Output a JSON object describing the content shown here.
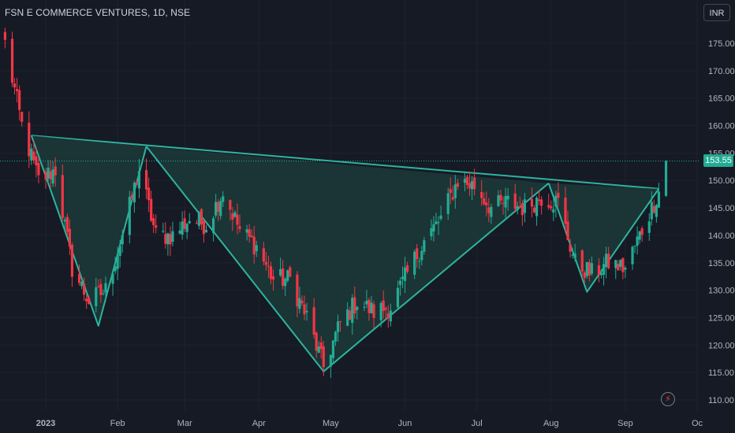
{
  "header": {
    "symbol_title": "FSN E COMMERCE VENTURES, 1D, NSE",
    "currency_button": "INR",
    "last_price": "153.55",
    "alert_icon": "lightning-icon"
  },
  "colors": {
    "background": "#161a25",
    "up": "#22ab94",
    "down": "#f23645",
    "pattern_line": "#2db49f",
    "pattern_fill": "#1c3a38"
  },
  "chart_data": {
    "type": "candlestick",
    "title": "FSN E COMMERCE VENTURES, 1D, NSE",
    "ylim": [
      109,
      179
    ],
    "y_ticks": [
      175,
      170,
      165,
      160,
      155,
      150,
      145,
      140,
      135,
      130,
      125,
      120,
      115,
      110
    ],
    "y_tick_labels": [
      "175.00",
      "170.00",
      "165.00",
      "160.00",
      "155.00",
      "150.00",
      "145.00",
      "140.00",
      "135.00",
      "130.00",
      "125.00",
      "120.00",
      "115.00",
      "110.00"
    ],
    "x_tick_labels": [
      "2023",
      "Feb",
      "Mar",
      "Apr",
      "May",
      "Jun",
      "Jul",
      "Aug",
      "Sep",
      "Oc"
    ],
    "x_tick_dates": [
      "2023-01-02",
      "2023-02-01",
      "2023-03-01",
      "2023-04-01",
      "2023-05-01",
      "2023-06-01",
      "2023-07-01",
      "2023-08-01",
      "2023-09-01",
      "2023-10-01"
    ],
    "last_price": 153.55,
    "patterns": [
      {
        "name": "neckline",
        "points": [
          [
            "2022-12-27",
            158.2
          ],
          [
            "2023-09-15",
            148.5
          ]
        ]
      },
      {
        "name": "left-shoulder",
        "points": [
          [
            "2022-12-27",
            158.2
          ],
          [
            "2023-01-24",
            123.5
          ],
          [
            "2023-02-13",
            156.2
          ]
        ]
      },
      {
        "name": "head",
        "points": [
          [
            "2023-02-13",
            156.2
          ],
          [
            "2023-04-28",
            115.2
          ],
          [
            "2023-07-31",
            149.5
          ]
        ]
      },
      {
        "name": "right-shoulder",
        "points": [
          [
            "2023-07-31",
            149.5
          ],
          [
            "2023-08-16",
            129.7
          ],
          [
            "2023-09-15",
            148.5
          ]
        ]
      }
    ],
    "anchors": [
      [
        "2022-12-16",
        175.0
      ],
      [
        "2022-12-23",
        160.0
      ],
      [
        "2022-12-30",
        150.0
      ],
      [
        "2023-01-06",
        152.0
      ],
      [
        "2023-01-13",
        134.0
      ],
      [
        "2023-01-20",
        128.0
      ],
      [
        "2023-01-27",
        130.0
      ],
      [
        "2023-02-03",
        140.0
      ],
      [
        "2023-02-10",
        152.0
      ],
      [
        "2023-02-17",
        140.0
      ],
      [
        "2023-02-24",
        140.0
      ],
      [
        "2023-03-03",
        143.0
      ],
      [
        "2023-03-10",
        142.0
      ],
      [
        "2023-03-17",
        148.0
      ],
      [
        "2023-03-24",
        141.0
      ],
      [
        "2023-03-31",
        138.0
      ],
      [
        "2023-04-07",
        132.0
      ],
      [
        "2023-04-14",
        132.0
      ],
      [
        "2023-04-21",
        125.0
      ],
      [
        "2023-04-28",
        116.0
      ],
      [
        "2023-05-05",
        124.0
      ],
      [
        "2023-05-12",
        128.0
      ],
      [
        "2023-05-19",
        126.0
      ],
      [
        "2023-05-26",
        127.0
      ],
      [
        "2023-06-02",
        133.0
      ],
      [
        "2023-06-09",
        139.0
      ],
      [
        "2023-06-16",
        143.0
      ],
      [
        "2023-06-23",
        150.0
      ],
      [
        "2023-06-30",
        149.0
      ],
      [
        "2023-07-07",
        145.0
      ],
      [
        "2023-07-14",
        146.0
      ],
      [
        "2023-07-21",
        145.0
      ],
      [
        "2023-07-28",
        147.0
      ],
      [
        "2023-08-04",
        146.0
      ],
      [
        "2023-08-11",
        135.0
      ],
      [
        "2023-08-18",
        133.0
      ],
      [
        "2023-08-25",
        135.0
      ],
      [
        "2023-09-01",
        134.0
      ],
      [
        "2023-09-08",
        141.0
      ],
      [
        "2023-09-15",
        148.0
      ],
      [
        "2023-09-18",
        153.0
      ]
    ]
  }
}
